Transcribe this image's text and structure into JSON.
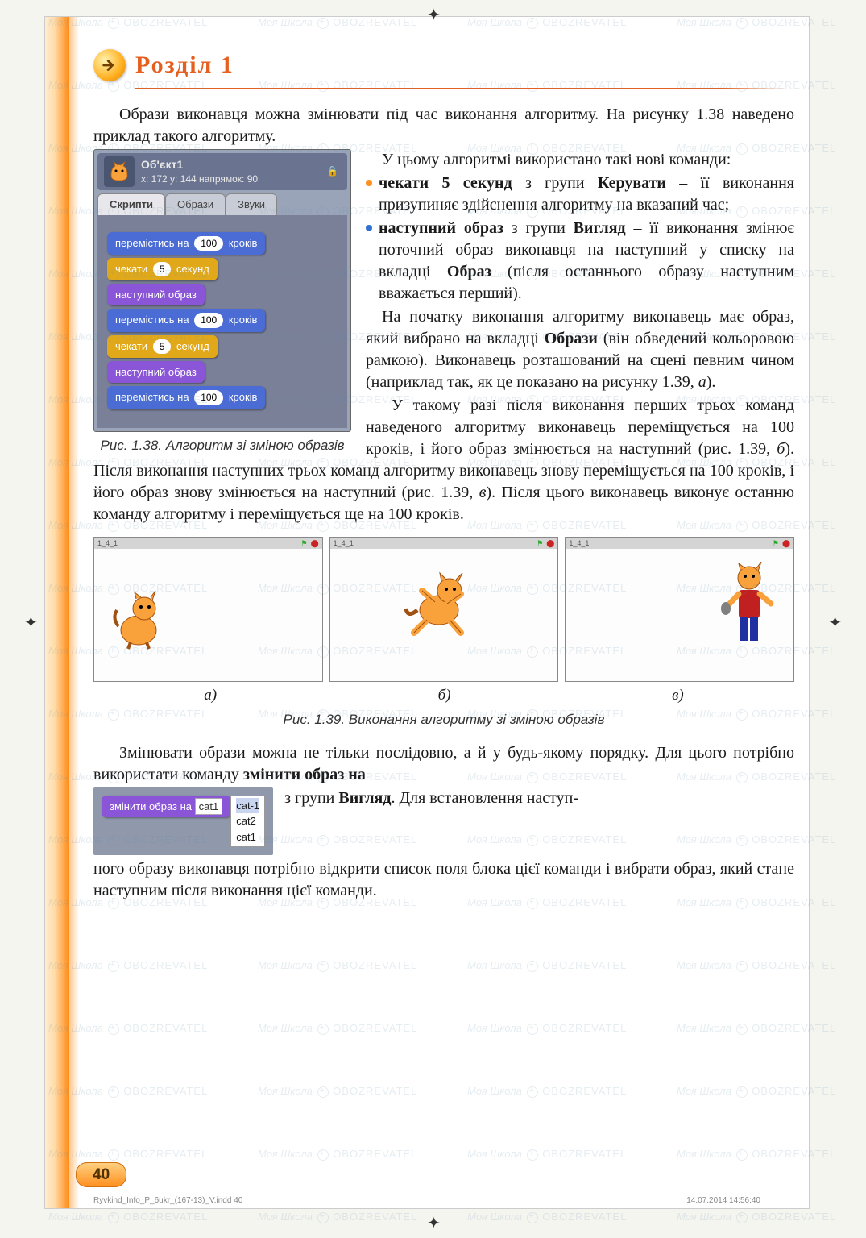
{
  "section": {
    "label": "Розділ 1"
  },
  "para1": "Образи виконавця можна змінювати під час виконання алгоритму. На рисунку 1.38 наведено приклад такого алгоритму.",
  "para2a": "У цьому алгоритмі використано такі нові команди:",
  "bullets": [
    {
      "color": "#ff9020",
      "text_a": "чекати 5 секунд",
      "text_b": " з групи ",
      "text_c": "Керувати",
      "text_d": " – її виконання призупиняє здійснення алгоритму на вказаний час;"
    },
    {
      "color": "#3070d0",
      "text_a": "наступний образ",
      "text_b": " з групи ",
      "text_c": "Вигляд",
      "text_d": " – її виконання змінює поточний образ виконавця на наступний у списку на вкладці ",
      "text_e": "Образ",
      "text_f": " (після останнього образу наступним вважається перший)."
    }
  ],
  "para3": "На початку виконання алгоритму виконавець має образ, який вибрано на вкладці ",
  "para3b": "Образи",
  "para3c": " (він обведений кольоровою рамкою). Виконавець розташований на сцені певним чином (наприклад так, як це показано на рисунку 1.39, ",
  "para3d": "а",
  "para3e": ").",
  "para4": "У такому разі після виконання перших трьох команд наведеного алгоритму виконавець переміщується на 100 кроків, і його образ змінюється на наступний (рис. 1.39, ",
  "para4b": "б",
  "para4c": "). Після виконання наступних трьох команд алгоритму виконавець знову переміщується на 100 кроків, і його образ знову змінюється на наступний (рис. 1.39, ",
  "para4d": "в",
  "para4e": "). Після цього виконавець виконує останню команду алгоритму і переміщується ще на 100 кроків.",
  "scratch": {
    "sprite_name": "Об'єкт1",
    "coords": "x: 172    y: 144   напрямок:  90",
    "tabs": [
      "Скрипти",
      "Образи",
      "Звуки"
    ],
    "blocks": [
      {
        "type": "motion",
        "pre": "перемістись на ",
        "val": "100",
        "post": " кроків"
      },
      {
        "type": "control",
        "pre": "чекати ",
        "val": "5",
        "post": " секунд"
      },
      {
        "type": "looks",
        "pre": "наступний образ",
        "val": "",
        "post": ""
      },
      {
        "type": "motion",
        "pre": "перемістись на ",
        "val": "100",
        "post": " кроків"
      },
      {
        "type": "control",
        "pre": "чекати ",
        "val": "5",
        "post": " секунд"
      },
      {
        "type": "looks",
        "pre": "наступний образ",
        "val": "",
        "post": ""
      },
      {
        "type": "motion",
        "pre": "перемістись на ",
        "val": "100",
        "post": " кроків"
      }
    ]
  },
  "caption138_a": "Рис. 1.38.",
  "caption138_b": " Алгоритм зі зміною образів",
  "triptych": {
    "coord": "1_4_1",
    "labels": [
      "а)",
      "б)",
      "в)"
    ]
  },
  "caption139_a": "Рис.  1.",
  "caption139_b": "39. Виконання алгоритму зі зміною образів",
  "para5a": "Змінювати образи можна не тільки послідовно, а й у будь-якому порядку. Для цього потрібно використати команду ",
  "para5b": "змінити образ на",
  "blockChange": {
    "label": "змінити образ на",
    "sel": "cat1",
    "opts": [
      "cat-1",
      "cat2",
      "cat1"
    ]
  },
  "para6a": "з групи ",
  "para6b": "Вигляд",
  "para6c": ". Для встановлення наступ-",
  "para7": "ного образу виконавця потрібно відкрити список поля блока цієї команди і вибрати образ, який стане наступним після виконання цієї команди.",
  "pageNum": "40",
  "footer": {
    "left": "Ryvkind_Info_P_6ukr_(167-13)_V.indd   40",
    "right": "14.07.2014   14:56:40"
  },
  "watermark": {
    "a": "Моя Школа",
    "b": "OBOZREVATEL"
  }
}
